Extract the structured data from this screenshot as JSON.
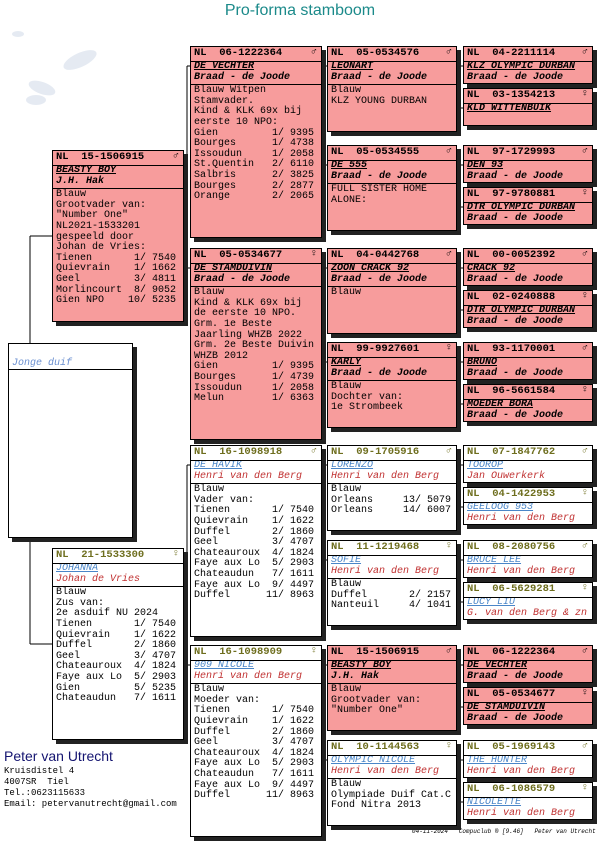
{
  "title": "Pro-forma stamboom",
  "generations": [
    [
      {
        "name": "Jonge duif",
        "color": "#ffffff"
      }
    ],
    [
      {
        "ring": "NL  15-1506915",
        "sex": "♂",
        "name": "BEASTY BOY",
        "breeder": "J.H. Hak",
        "color": "#f79c9c",
        "info": [
          "Blauw",
          "Grootvader van:",
          "\"Number One\"",
          "NL2021-1533201",
          "gespeeld door",
          "Johan de Vries:",
          "Tienen       1/ 7540",
          "Quievrain    1/ 1662",
          "Geel         3/ 4811",
          "Morlincourt  8/ 9052",
          "Gien NPO    10/ 5235"
        ]
      },
      {
        "ring": "NL  21-1533300",
        "sex": "♀",
        "name": "JOHANNA",
        "breeder": "Johan de Vries",
        "color": "#ffffff",
        "info": [
          "Blauw",
          "Zus van:",
          "2e asduif NU 2024",
          "Tienen       1/ 7540",
          "Quievrain    1/ 1622",
          "Duffel       2/ 1860",
          "Geel         3/ 4707",
          "Chateauroux  4/ 1824",
          "Faye aux Lo  5/ 2903",
          "Gien         5/ 5235",
          "Chateaudun   7/ 1611"
        ]
      }
    ],
    [
      {
        "ring": "NL  06-1222364",
        "sex": "♂",
        "name": "DE VECHTER",
        "breeder": "Braad - de Joode",
        "color": "#f79c9c",
        "info": [
          "Blauw Witpen",
          "Stamvader.",
          "Kind & KLK 69x bij",
          "eerste 10 NPO:",
          "Gien         1/ 9395",
          "Bourges      1/ 4738",
          "Issoudun     1/ 2058",
          "St.Quentin   2/ 6110",
          "Salbris      2/ 3825",
          "Bourges      2/ 2877",
          "Orange       2/ 2065"
        ]
      },
      {
        "ring": "NL  05-0534677",
        "sex": "♀",
        "name": "DE STAMDUIVIN",
        "breeder": "Braad - de Joode",
        "color": "#f79c9c",
        "info": [
          "Blauw",
          "Kind & KLK 69x bij",
          "de eerste 10 NPO.",
          "Grm. 1e Beste",
          "Jaarling WHZB 2022",
          "Grm. 2e Beste Duivin",
          "WHZB 2012",
          "Gien         1/ 9395",
          "Bourges      1/ 4739",
          "Issoudun     1/ 2058",
          "Melun        1/ 6363"
        ]
      },
      {
        "ring": "NL  16-1098918",
        "sex": "♂",
        "name": "DE HAVIK",
        "breeder": "Henri van den Berg",
        "color": "#ffffff",
        "info": [
          "Blauw",
          "Vader van:",
          "Tienen       1/ 7540",
          "Quievrain    1/ 1622",
          "Duffel       2/ 1860",
          "Geel         3/ 4707",
          "Chateauroux  4/ 1824",
          "Faye aux Lo  5/ 2903",
          "Chateaudun   7/ 1611",
          "Faye aux Lo  9/ 4497",
          "Duffel      11/ 8963"
        ]
      },
      {
        "ring": "NL  16-1098909",
        "sex": "♀",
        "name": "909 NICOLE",
        "breeder": "Henri van den Berg",
        "color": "#ffffff",
        "info": [
          "Blauw",
          "Moeder van:",
          "Tienen       1/ 7540",
          "Quievrain    1/ 1622",
          "Duffel       2/ 1860",
          "Geel         3/ 4707",
          "Chateauroux  4/ 1824",
          "Faye aux Lo  5/ 2903",
          "Chateaudun   7/ 1611",
          "Faye aux Lo  9/ 4497",
          "Duffel      11/ 8963"
        ]
      }
    ],
    [
      {
        "ring": "NL  05-0534576",
        "sex": "♂",
        "name": "LEONART",
        "breeder": "Braad - de Joode",
        "color": "#f79c9c",
        "info": [
          "Blauw",
          "KLZ YOUNG DURBAN"
        ]
      },
      {
        "ring": "NL  05-0534555",
        "sex": "♂",
        "name": "DE 555",
        "breeder": "Braad - de Joode",
        "color": "#f79c9c",
        "info": [
          "FULL SISTER HOME",
          "ALONE:"
        ]
      },
      {
        "ring": "NL  04-0442768",
        "sex": "♂",
        "name": "ZOON CRACK 92",
        "breeder": "Braad - de Joode",
        "color": "#f79c9c",
        "info": [
          "Blauw"
        ]
      },
      {
        "ring": "NL  99-9927601",
        "sex": "♀",
        "name": "KARLY",
        "breeder": "Braad - de Joode",
        "color": "#f79c9c",
        "info": [
          "Blauw",
          "Dochter van:",
          "1e Strombeek"
        ]
      },
      {
        "ring": "NL  09-1705916",
        "sex": "♂",
        "name": "LORENZO",
        "breeder": "Henri van den Berg",
        "color": "#ffffff",
        "info": [
          "Blauw",
          "Orleans     13/ 5079",
          "Orleans     14/ 6007"
        ]
      },
      {
        "ring": "NL  11-1219468",
        "sex": "♀",
        "name": "SOFIE",
        "breeder": "Henri van den Berg",
        "color": "#ffffff",
        "info": [
          "Blauw",
          "Duffel       2/ 2157",
          "Nanteuil     4/ 1041"
        ]
      },
      {
        "ring": "NL  15-1506915",
        "sex": "♂",
        "name": "BEASTY BOY",
        "breeder": "J.H. Hak",
        "color": "#f79c9c",
        "info": [
          "Blauw",
          "Grootvader van:",
          "\"Number One\""
        ]
      },
      {
        "ring": "NL  10-1144563",
        "sex": "♀",
        "name": "OLYMPIC NICOLE",
        "breeder": "Henri van den Berg",
        "color": "#ffffff",
        "info": [
          "Blauw",
          "Olympiade Duif Cat.C",
          "Fond Nitra 2013"
        ]
      }
    ],
    [
      {
        "ring": "NL  04-2211114",
        "sex": "♂",
        "name": "KLZ OLYMPIC DURBAN",
        "breeder": "Braad - de Joode",
        "color": "#f79c9c"
      },
      {
        "ring": "NL  03-1354213",
        "sex": "♀",
        "name": "KLD WITTENBUIK",
        "color": "#f79c9c"
      },
      {
        "ring": "NL  97-1729993",
        "sex": "♂",
        "name": "DEN 93",
        "breeder": "Braad - de Joode",
        "color": "#f79c9c"
      },
      {
        "ring": "NL  97-9780881",
        "sex": "♀",
        "name": "DTR OLYMPIC DURBAN",
        "breeder": "Braad - de Joode",
        "color": "#f79c9c"
      },
      {
        "ring": "NL  00-0052392",
        "sex": "♂",
        "name": "CRACK 92",
        "breeder": "Braad - de Joode",
        "color": "#f79c9c"
      },
      {
        "ring": "NL  02-0240888",
        "sex": "♀",
        "name": "DTR OLYMPIC DURBAN",
        "breeder": "Braad - de Joode",
        "color": "#f79c9c"
      },
      {
        "ring": "NL  93-1170001",
        "sex": "♂",
        "name": "BRUNO",
        "breeder": "Braad - de Joode",
        "color": "#f79c9c"
      },
      {
        "ring": "NL  96-5661584",
        "sex": "♀",
        "name": "MOEDER BORA",
        "breeder": "Braad - de Joode",
        "color": "#f79c9c"
      },
      {
        "ring": "NL  07-1847762",
        "sex": "♂",
        "name": "TOOROP",
        "breeder": "Jan Ouwerkerk",
        "color": "#ffffff"
      },
      {
        "ring": "NL  04-1422953",
        "sex": "♀",
        "name": "GEELOOG 953",
        "breeder": "Henri van den Berg",
        "color": "#ffffff"
      },
      {
        "ring": "NL  08-2080756",
        "sex": "♂",
        "name": "BRUCE LEE",
        "breeder": "Henri van den Berg",
        "color": "#ffffff"
      },
      {
        "ring": "NL  06-5629281",
        "sex": "♀",
        "name": "LUCY LIU",
        "breeder": "G. van den Berg & zn",
        "color": "#ffffff"
      },
      {
        "ring": "NL  06-1222364",
        "sex": "♂",
        "name": "DE VECHTER",
        "breeder": "Braad - de Joode",
        "color": "#f79c9c"
      },
      {
        "ring": "NL  05-0534677",
        "sex": "♀",
        "name": "DE STAMDUIVIN",
        "breeder": "Braad - de Joode",
        "color": "#f79c9c"
      },
      {
        "ring": "NL  05-1969143",
        "sex": "♂",
        "name": "THE HUNTER",
        "breeder": "Henri van den Berg",
        "color": "#ffffff"
      },
      {
        "ring": "NL  06-1086579",
        "sex": "♀",
        "name": "NICOLETTE",
        "breeder": "Henri van den Berg",
        "color": "#ffffff"
      }
    ]
  ],
  "owner": {
    "name": "Peter van Utrecht",
    "lines": [
      "Kruisdistel 4",
      "4007SR  Tiel",
      "Tel.:0623115633",
      "Email: petervanutrecht@gmail.com"
    ]
  },
  "footer": {
    "date": "04-11-2024",
    "program": "Compuclub ® [9.46]",
    "user": "Peter van Utrecht"
  }
}
